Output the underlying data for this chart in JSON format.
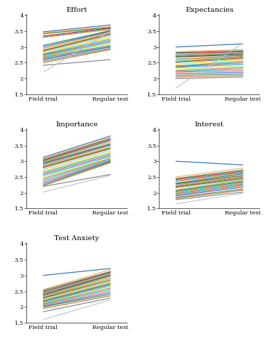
{
  "titles": [
    "Effort",
    "Expectancies",
    "Importance",
    "Interest",
    "Test Anxiety"
  ],
  "ylim": [
    1.5,
    4.05
  ],
  "yticks": [
    1.5,
    2.0,
    2.5,
    3.0,
    3.5,
    4.0
  ],
  "ytick_labels": [
    "1.5",
    "2",
    "2.5",
    "3",
    "3.5",
    "4"
  ],
  "xtick_labels": [
    "Field trial",
    "Regular test"
  ],
  "effort": {
    "field": [
      3.48,
      3.45,
      3.42,
      3.35,
      3.32,
      3.3,
      3.05,
      3.0,
      3.0,
      2.95,
      2.9,
      2.88,
      2.85,
      2.82,
      2.78,
      2.75,
      2.72,
      2.7,
      2.68,
      2.65,
      2.62,
      2.6,
      2.55,
      2.5,
      2.42,
      2.2
    ],
    "regular": [
      3.7,
      3.65,
      3.62,
      3.6,
      3.58,
      3.55,
      3.52,
      3.5,
      3.48,
      3.45,
      3.42,
      3.4,
      3.35,
      3.3,
      3.25,
      3.2,
      3.15,
      3.1,
      3.05,
      3.02,
      3.0,
      3.0,
      2.95,
      2.92,
      2.6,
      3.5
    ]
  },
  "expectancies": {
    "field": [
      3.0,
      2.85,
      2.82,
      2.8,
      2.75,
      2.72,
      2.7,
      2.68,
      2.62,
      2.6,
      2.55,
      2.52,
      2.5,
      2.45,
      2.4,
      2.38,
      2.35,
      2.3,
      2.25,
      2.22,
      2.2,
      2.15,
      2.1,
      2.05,
      2.0,
      1.7
    ],
    "regular": [
      3.1,
      2.92,
      2.88,
      2.85,
      2.82,
      2.8,
      2.78,
      2.75,
      2.72,
      2.7,
      2.68,
      2.65,
      2.62,
      2.6,
      2.55,
      2.5,
      2.45,
      2.4,
      2.35,
      2.3,
      2.25,
      2.2,
      2.15,
      2.1,
      2.05,
      3.12
    ]
  },
  "importance": {
    "field": [
      3.12,
      3.08,
      3.05,
      3.02,
      3.0,
      2.98,
      2.95,
      2.92,
      2.88,
      2.85,
      2.82,
      2.8,
      2.75,
      2.7,
      2.65,
      2.6,
      2.55,
      2.5,
      2.45,
      2.4,
      2.35,
      2.3,
      2.25,
      2.22,
      2.2,
      2.02
    ],
    "regular": [
      3.8,
      3.75,
      3.72,
      3.68,
      3.65,
      3.6,
      3.55,
      3.52,
      3.5,
      3.45,
      3.42,
      3.4,
      3.35,
      3.3,
      3.25,
      3.2,
      3.15,
      3.1,
      3.08,
      3.05,
      3.02,
      3.0,
      2.98,
      2.95,
      2.58,
      2.55
    ]
  },
  "interest": {
    "field": [
      3.0,
      2.5,
      2.45,
      2.42,
      2.38,
      2.35,
      2.3,
      2.28,
      2.25,
      2.22,
      2.2,
      2.18,
      2.15,
      2.1,
      2.08,
      2.05,
      2.02,
      2.0,
      1.98,
      1.95,
      1.92,
      1.9,
      1.85,
      1.82,
      1.78,
      1.65
    ],
    "regular": [
      2.88,
      2.78,
      2.72,
      2.68,
      2.65,
      2.62,
      2.6,
      2.55,
      2.52,
      2.5,
      2.48,
      2.45,
      2.42,
      2.4,
      2.38,
      2.35,
      2.32,
      2.3,
      2.28,
      2.25,
      2.22,
      2.18,
      2.12,
      2.08,
      2.02,
      1.98
    ]
  },
  "test_anxiety": {
    "field": [
      3.0,
      2.55,
      2.52,
      2.48,
      2.45,
      2.42,
      2.4,
      2.38,
      2.35,
      2.32,
      2.3,
      2.28,
      2.25,
      2.22,
      2.2,
      2.18,
      2.15,
      2.12,
      2.1,
      2.08,
      2.05,
      2.02,
      2.0,
      1.95,
      1.85,
      1.6
    ],
    "regular": [
      3.22,
      3.18,
      3.12,
      3.1,
      3.08,
      3.05,
      3.02,
      3.0,
      2.98,
      2.95,
      2.9,
      2.85,
      2.8,
      2.78,
      2.75,
      2.72,
      2.68,
      2.65,
      2.6,
      2.55,
      2.5,
      2.45,
      2.4,
      2.35,
      2.28,
      2.22
    ]
  },
  "colors": [
    "#2166ac",
    "#f4a460",
    "#228b22",
    "#dc143c",
    "#4682b4",
    "#daa520",
    "#008080",
    "#8b4513",
    "#6495ed",
    "#ff8c00",
    "#32cd32",
    "#b22222",
    "#87ceeb",
    "#ffd700",
    "#20b2aa",
    "#a0522d",
    "#1e90ff",
    "#adff2f",
    "#cd5c5c",
    "#00ced1",
    "#ff6347",
    "#4169e1",
    "#2e8b57",
    "#d2691e",
    "#708090",
    "#c0c0c0"
  ]
}
